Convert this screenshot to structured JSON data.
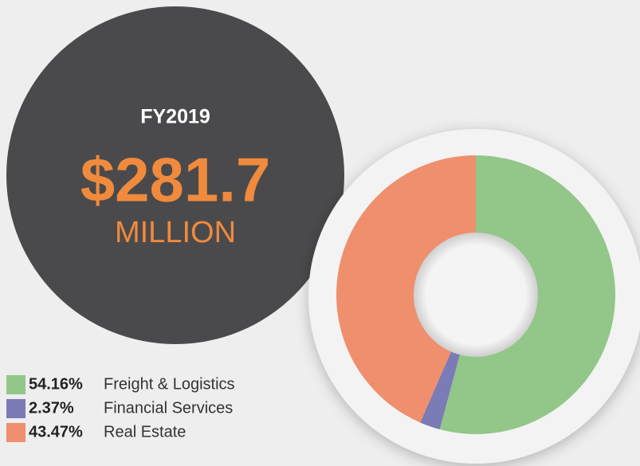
{
  "chart_data": {
    "type": "donut",
    "title": "FY2019",
    "headline": "$281.7",
    "headline_unit": "MILLION",
    "categories": [
      "Freight & Logistics",
      "Financial Services",
      "Real Estate"
    ],
    "values": [
      54.16,
      2.37,
      43.47
    ],
    "value_labels": [
      "54.16%",
      "2.37%",
      "43.47%"
    ],
    "colors": [
      "#93c689",
      "#7b7bb5",
      "#ef8f6d"
    ]
  }
}
